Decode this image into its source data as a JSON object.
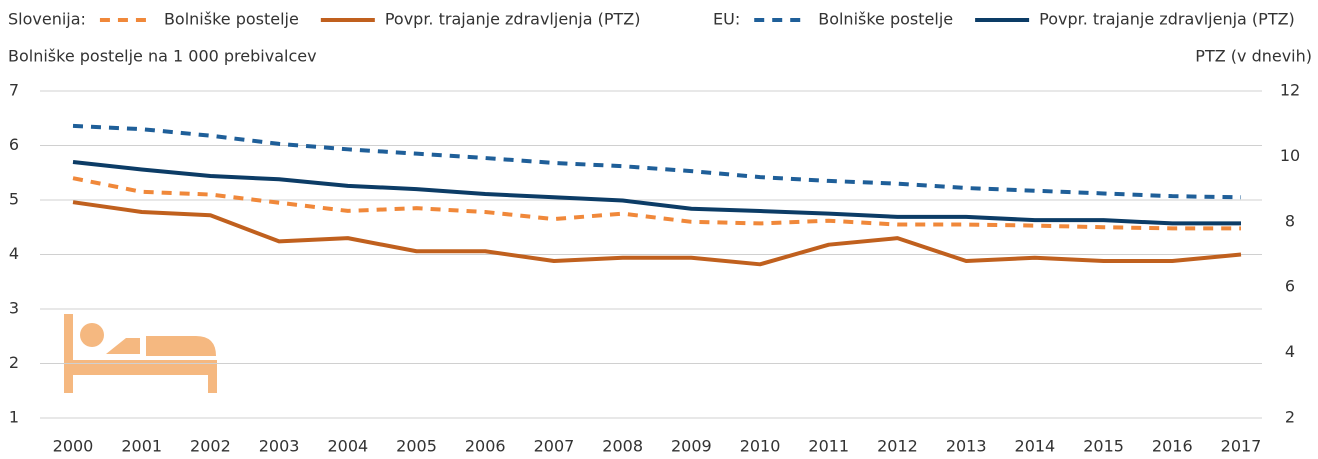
{
  "chart_data": {
    "type": "line",
    "legend": [
      {
        "label": "Slovenija:"
      },
      {
        "label": "EU:"
      }
    ],
    "y_label": "Bolniške postelje na 1 000 prebivalcev",
    "y2_label": "PTZ (v dnevih)",
    "categories": [
      "2000",
      "2001",
      "2002",
      "2003",
      "2004",
      "2005",
      "2006",
      "2007",
      "2008",
      "2009",
      "2010",
      "2011",
      "2012",
      "2013",
      "2014",
      "2015",
      "2016",
      "2017"
    ],
    "ylim": [
      1,
      7
    ],
    "yticks": [
      1,
      2,
      3,
      4,
      5,
      6,
      7
    ],
    "y2lim": [
      2,
      12
    ],
    "y2ticks": [
      2,
      4,
      6,
      8,
      10,
      12
    ],
    "grid": true,
    "series": [
      {
        "name": "Bolniške postelje",
        "color": "#f0883a",
        "dashed": true,
        "values": [
          5.4,
          5.15,
          5.1,
          4.95,
          4.8,
          4.85,
          4.78,
          4.65,
          4.75,
          4.6,
          4.57,
          4.62,
          4.55,
          4.55,
          4.53,
          4.5,
          4.48,
          4.48
        ]
      },
      {
        "name": "Povpr. trajanje zdravljenja (PTZ)",
        "color": "#c0601e",
        "dashed": false,
        "axis": "y2",
        "values": [
          8.6,
          8.3,
          8.2,
          7.4,
          7.5,
          7.1,
          7.1,
          6.8,
          6.9,
          6.9,
          6.7,
          7.3,
          7.5,
          6.8,
          6.9,
          6.8,
          6.8,
          7.0
        ]
      },
      {
        "name": "Bolniške postelje",
        "color": "#1f5f99",
        "dashed": true,
        "values": [
          6.36,
          6.3,
          6.18,
          6.03,
          5.93,
          5.85,
          5.77,
          5.68,
          5.62,
          5.53,
          5.42,
          5.35,
          5.3,
          5.22,
          5.17,
          5.12,
          5.07,
          5.05
        ]
      },
      {
        "name": "Povpr. trajanje zdravljenja (PTZ)",
        "color": "#0c3c66",
        "dashed": false,
        "axis": "y2",
        "values": [
          9.83,
          9.6,
          9.4,
          9.3,
          9.1,
          9.0,
          8.85,
          8.75,
          8.65,
          8.4,
          8.33,
          8.25,
          8.15,
          8.15,
          8.05,
          8.05,
          7.95,
          7.95
        ]
      }
    ]
  }
}
